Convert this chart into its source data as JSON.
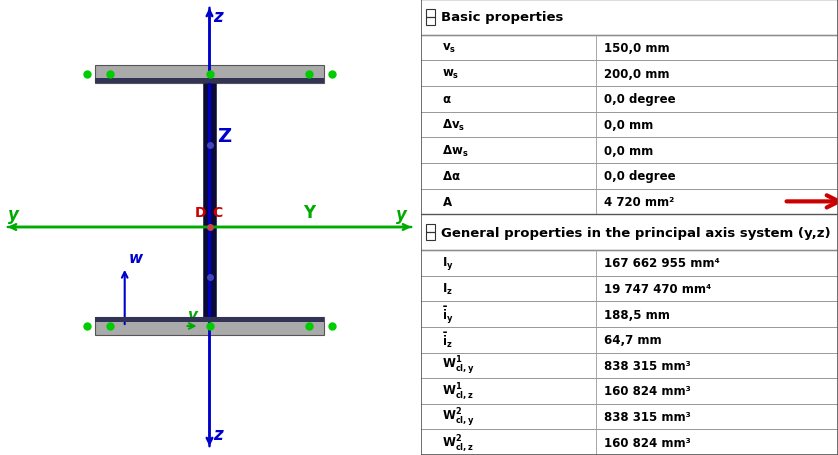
{
  "fig_width": 8.38,
  "fig_height": 4.56,
  "bg_color": "#ffffff",
  "table_header1": "Basic properties",
  "table_header2": "General properties in the principal axis system (y,z)",
  "basic_labels": [
    "$\\mathbf{v_s}$",
    "$\\mathbf{w_s}$",
    "$\\mathbf{\\alpha}$",
    "$\\mathbf{\\Delta v_s}$",
    "$\\mathbf{\\Delta w_s}$",
    "$\\mathbf{\\Delta\\alpha}$",
    "$\\mathbf{A}$"
  ],
  "basic_values": [
    "150,0 mm",
    "200,0 mm",
    "0,0 degree",
    "0,0 mm",
    "0,0 mm",
    "0,0 degree",
    "4 720 mm²"
  ],
  "general_labels": [
    "$\\mathbf{I_y}$",
    "$\\mathbf{I_z}$",
    "$\\mathbf{\\bar{i}_y}$",
    "$\\mathbf{\\bar{i}_z}$",
    "$\\mathbf{W^1_{cl,y}}$",
    "$\\mathbf{W^1_{cl,z}}$",
    "$\\mathbf{W^2_{cl,y}}$",
    "$\\mathbf{W^2_{cl,z}}$"
  ],
  "general_values": [
    "167 662 955 mm⁴",
    "19 747 470 mm⁴",
    "188,5 mm",
    "64,7 mm",
    "838 315 mm³",
    "160 824 mm³",
    "838 315 mm³",
    "160 824 mm³"
  ],
  "axis_blue": "#0000cc",
  "axis_green": "#00aa00",
  "web_color": "#0a0a3a",
  "flange_color": "#aaaaaa",
  "flange_edge": "#555555",
  "node_green": "#00cc00",
  "dc_red": "#cc0000",
  "arrow_red": "#cc0000",
  "table_border": "#555555",
  "table_row_line": "#999999"
}
